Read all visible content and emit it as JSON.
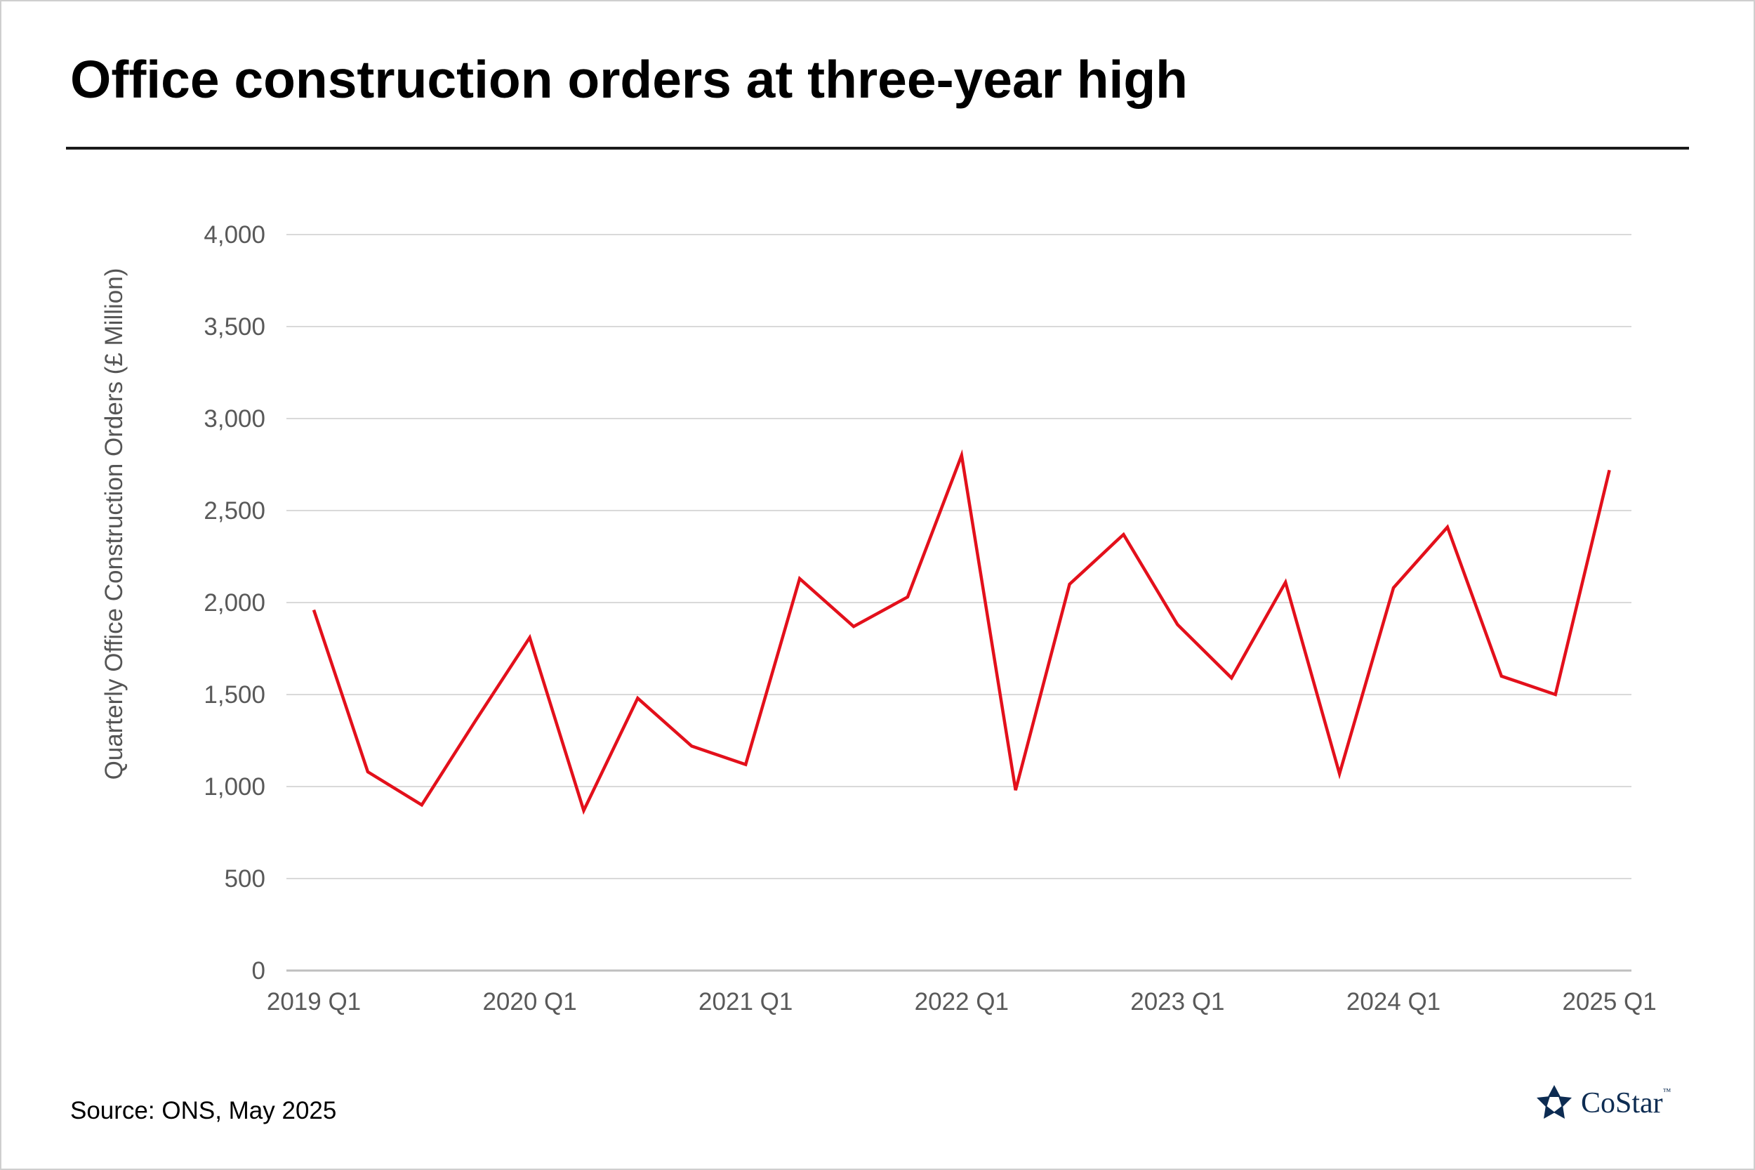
{
  "header": {
    "title": "Office construction orders at three-year high"
  },
  "footer": {
    "source": "Source: ONS, May 2025",
    "logo_text": "CoStar",
    "logo_mark": "™"
  },
  "colors": {
    "line": "#e3101b",
    "grid": "#d9d9d9",
    "axis": "#bfbfbf",
    "tick_text": "#595959"
  },
  "chart_data": {
    "type": "line",
    "title": "Office construction orders at three-year high",
    "ylabel": "Quarterly Office Construction Orders (£ Million)",
    "xlabel": "",
    "ylim": [
      0,
      4000
    ],
    "yticks": [
      0,
      500,
      1000,
      1500,
      2000,
      2500,
      3000,
      3500,
      4000
    ],
    "ytick_labels": [
      "0",
      "500",
      "1,000",
      "1,500",
      "2,000",
      "2,500",
      "3,000",
      "3,500",
      "4,000"
    ],
    "xtick_labels": [
      "2019 Q1",
      "2020 Q1",
      "2021 Q1",
      "2022 Q1",
      "2023 Q1",
      "2024 Q1",
      "2025 Q1"
    ],
    "grid": true,
    "legend": "none",
    "series": [
      {
        "x": [
          "2019 Q1",
          "2019 Q2",
          "2019 Q3",
          "2019 Q4",
          "2020 Q1",
          "2020 Q2",
          "2020 Q3",
          "2020 Q4",
          "2021 Q1",
          "2021 Q2",
          "2021 Q3",
          "2021 Q4",
          "2022 Q1",
          "2022 Q2",
          "2022 Q3",
          "2022 Q4",
          "2023 Q1",
          "2023 Q2",
          "2023 Q3",
          "2023 Q4",
          "2024 Q1",
          "2024 Q2",
          "2024 Q3",
          "2024 Q4",
          "2025 Q1"
        ],
        "values": [
          1960,
          1080,
          900,
          1360,
          1810,
          870,
          1480,
          1220,
          1120,
          2130,
          1870,
          2030,
          2800,
          980,
          2100,
          2370,
          1880,
          1590,
          2110,
          1070,
          2080,
          2410,
          1600,
          1500,
          2720
        ]
      }
    ]
  }
}
